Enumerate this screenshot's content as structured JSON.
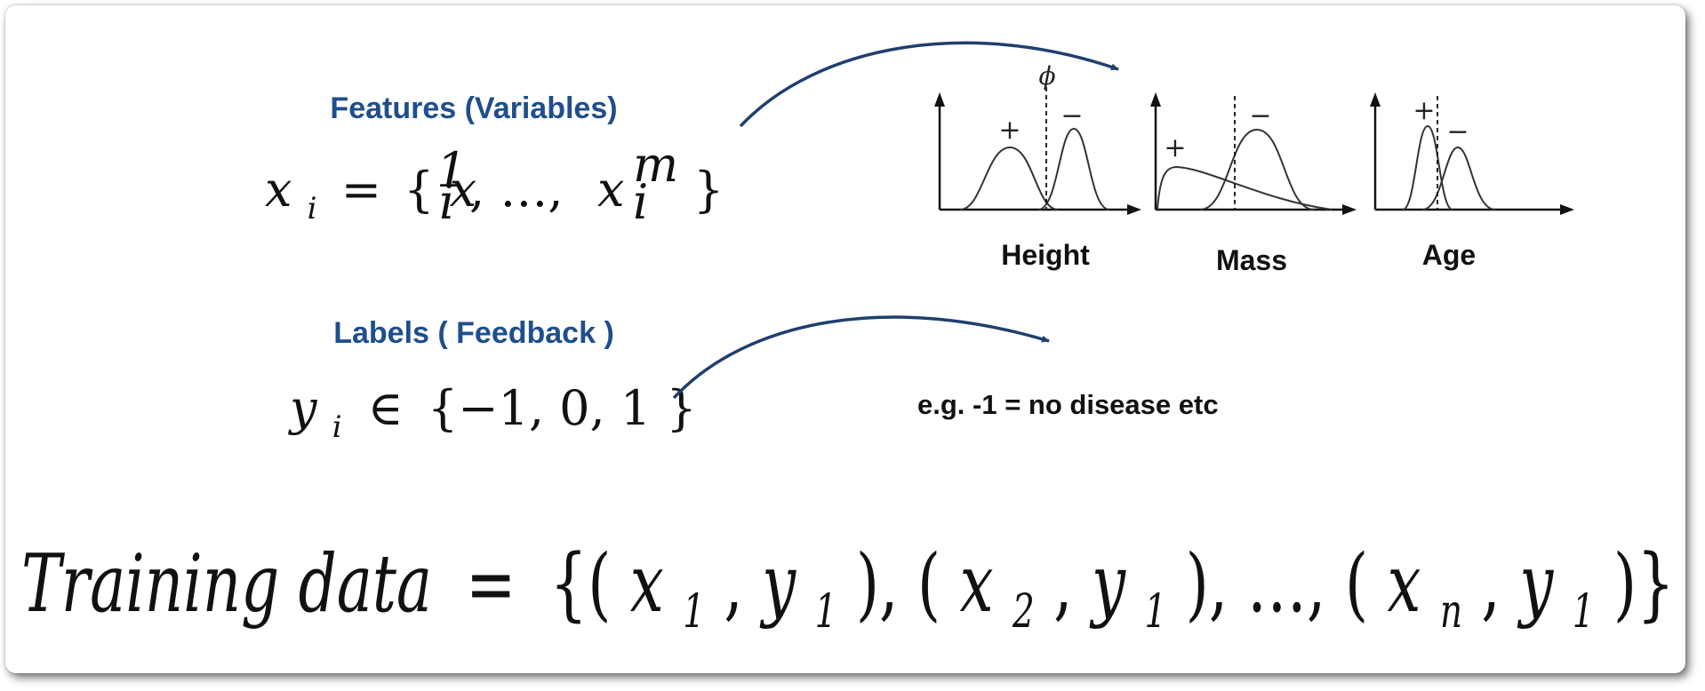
{
  "features": {
    "heading": "Features (Variables)",
    "formula": {
      "lhs": "x",
      "lhs_sub": "i",
      "equals": "=",
      "open": "{",
      "first": "x",
      "first_sub": "i",
      "first_sup": "1",
      "ellipsis": ", …,",
      "last": "x",
      "last_sub": "i",
      "last_sup": "m",
      "close": "}"
    }
  },
  "labels": {
    "heading": "Labels ( Feedback )",
    "formula": {
      "lhs": "y",
      "lhs_sub": "i",
      "in": "∈",
      "set": "{−1, 0, 1 }"
    },
    "example": "e.g. -1 = no disease etc"
  },
  "plots": {
    "threshold_symbol": "ϕ",
    "plus_sign": "+",
    "minus_sign": "−",
    "items": [
      {
        "label": "Height"
      },
      {
        "label": "Mass"
      },
      {
        "label": "Age"
      }
    ]
  },
  "training": {
    "lhs": "Training data",
    "equals": "=",
    "open": "{(",
    "x1": "x",
    "x1_sub": "1",
    "comma1": ",",
    "y1": "y",
    "y1_sub": "1",
    "mid1": "), (",
    "x2": "x",
    "x2_sub": "2",
    "comma2": " ,",
    "y2": "y",
    "y2_sub": "1",
    "mid2": "), …, (",
    "x3": "x",
    "x3_sub": "n",
    "comma3": ",",
    "y3": "y",
    "y3_sub": "1",
    "close": ")}"
  },
  "colors": {
    "heading": "#1f4e8c",
    "arrow": "#1f3f6e",
    "text": "#111111"
  }
}
